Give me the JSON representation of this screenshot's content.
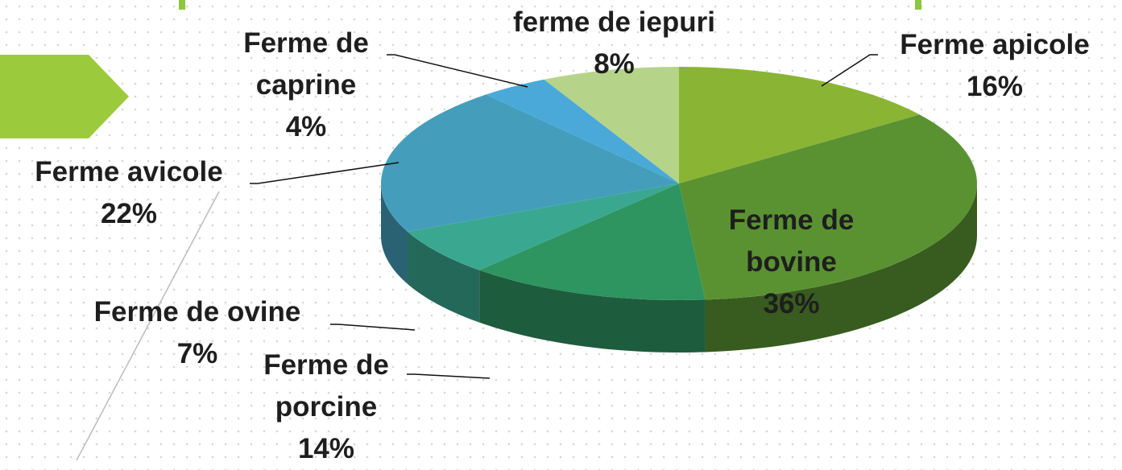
{
  "chart_data": {
    "type": "pie",
    "categories": [
      "Ferme apicole",
      "Ferme de bovine",
      "Ferme de porcine",
      "Ferme de ovine",
      "Ferme avicole",
      "Ferme de caprine",
      "ferme de iepuri"
    ],
    "values": [
      16,
      36,
      14,
      7,
      22,
      4,
      8
    ],
    "value_labels": [
      "16%",
      "36%",
      "14%",
      "7%",
      "22%",
      "4%",
      "8%"
    ],
    "colors": [
      "#8ab534",
      "#5a9232",
      "#2e9460",
      "#3aa890",
      "#449ebb",
      "#4aa9d9",
      "#b5d48a"
    ]
  }
}
